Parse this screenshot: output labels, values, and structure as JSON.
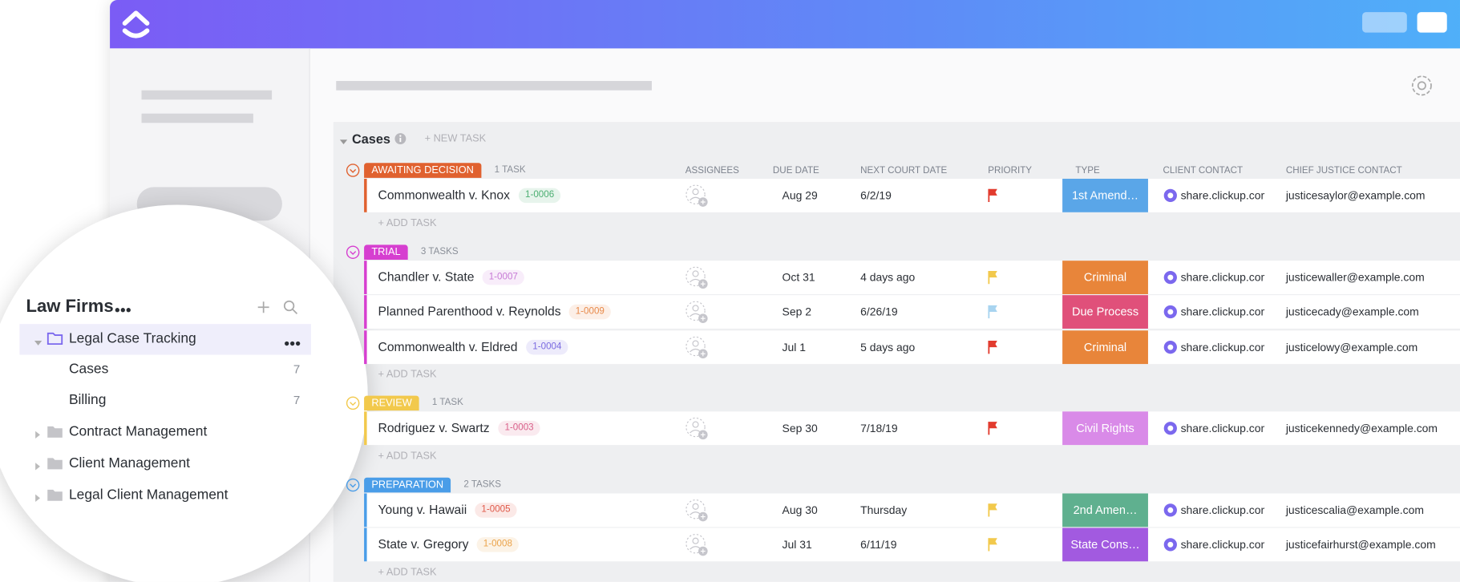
{
  "header": {},
  "sidebar": {
    "title": "Law Firms",
    "items": [
      {
        "label": "Legal Case Tracking",
        "selected": true
      },
      {
        "label": "Cases",
        "count": 7,
        "child": true
      },
      {
        "label": "Billing",
        "count": 7,
        "child": true
      },
      {
        "label": "Contract Management"
      },
      {
        "label": "Client Management"
      },
      {
        "label": "Legal Client Management"
      }
    ]
  },
  "list": {
    "title": "Cases",
    "new_task": "+ NEW TASK",
    "add_task": "+ ADD TASK",
    "columns": [
      "ASSIGNEES",
      "DUE DATE",
      "NEXT COURT DATE",
      "PRIORITY",
      "TYPE",
      "CLIENT CONTACT",
      "CHIEF JUSTICE CONTACT"
    ],
    "groups": [
      {
        "status": "AWAITING DECISION",
        "color": "#e0612f",
        "count": "1 TASK",
        "tasks": [
          {
            "name": "Commonwealth v. Knox",
            "id": "1-0006",
            "id_color": "#4caf72",
            "due_date": "Aug 29",
            "next_court_date": "6/2/19",
            "priority_color": "#e23b2e",
            "type": "1st Amend…",
            "type_color": "#5aa6e8",
            "client_contact": "share.clickup.com",
            "chief_justice_contact": "justicesaylor@example.com"
          }
        ]
      },
      {
        "status": "TRIAL",
        "color": "#d63fd0",
        "count": "3 TASKS",
        "tasks": [
          {
            "name": "Chandler v. State",
            "id": "1-0007",
            "id_color": "#c77ad6",
            "due_date": "Oct 31",
            "next_court_date": "4 days ago",
            "priority_color": "#f2c94c",
            "type": "Criminal",
            "type_color": "#e8853a",
            "client_contact": "share.clickup.com",
            "chief_justice_contact": "justicewaller@example.com"
          },
          {
            "name": "Planned Parenthood v. Reynolds",
            "id": "1-0009",
            "id_color": "#e88a4a",
            "due_date": "Sep 2",
            "next_court_date": "6/26/19",
            "priority_color": "#a8d4f0",
            "type": "Due Process",
            "type_color": "#e0507a",
            "client_contact": "share.clickup.com",
            "chief_justice_contact": "justicecady@example.com"
          },
          {
            "name": "Commonwealth v. Eldred",
            "id": "1-0004",
            "id_color": "#7b6be0",
            "due_date": "Jul 1",
            "next_court_date": "5 days ago",
            "priority_color": "#e23b2e",
            "type": "Criminal",
            "type_color": "#e8853a",
            "client_contact": "share.clickup.com",
            "chief_justice_contact": "justicelowy@example.com"
          }
        ]
      },
      {
        "status": "REVIEW",
        "color": "#f2c94c",
        "count": "1 TASK",
        "tasks": [
          {
            "name": "Rodriguez v. Swartz",
            "id": "1-0003",
            "id_color": "#d9608a",
            "due_date": "Sep 30",
            "next_court_date": "7/18/19",
            "priority_color": "#e23b2e",
            "type": "Civil Rights",
            "type_color": "#d98ae8",
            "client_contact": "share.clickup.com",
            "chief_justice_contact": "justicekennedy@example.com"
          }
        ]
      },
      {
        "status": "PREPARATION",
        "color": "#4a9de8",
        "count": "2 TASKS",
        "tasks": [
          {
            "name": "Young v. Hawaii",
            "id": "1-0005",
            "id_color": "#e05a4a",
            "due_date": "Aug 30",
            "next_court_date": "Thursday",
            "priority_color": "#f2c94c",
            "type": "2nd Amen…",
            "type_color": "#5fb08f",
            "client_contact": "share.clickup.com",
            "chief_justice_contact": "justicescalia@example.com"
          },
          {
            "name": "State v. Gregory",
            "id": "1-0008",
            "id_color": "#eba34a",
            "due_date": "Jul 31",
            "next_court_date": "6/11/19",
            "priority_color": "#f2c94c",
            "type": "State Cons…",
            "type_color": "#a25ae0",
            "client_contact": "share.clickup.com",
            "chief_justice_contact": "justicefairhurst@example.com"
          }
        ]
      }
    ]
  }
}
